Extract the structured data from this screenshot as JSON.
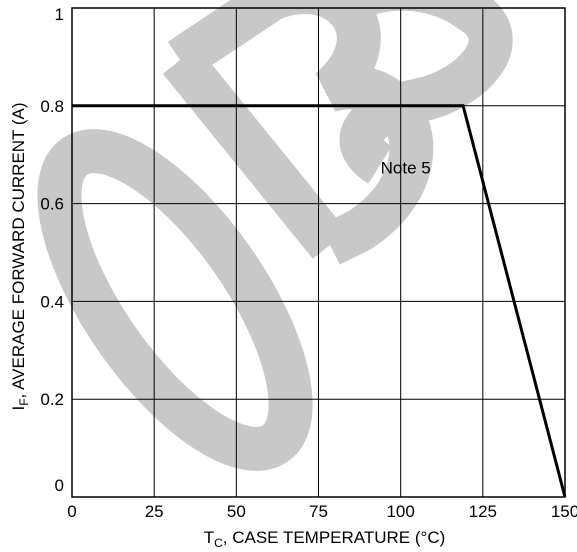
{
  "chart_data": {
    "type": "line",
    "title": "",
    "x": [
      0,
      119,
      150
    ],
    "series": [
      {
        "values": [
          0.8,
          0.8,
          0
        ]
      }
    ],
    "xlim": [
      0,
      150
    ],
    "ylim": [
      0,
      1
    ],
    "xticks": [
      "0",
      "25",
      "50",
      "75",
      "100",
      "125",
      "150"
    ],
    "yticks": [
      "0",
      "0.2",
      "0.4",
      "0.6",
      "0.8",
      "1"
    ],
    "xlabel": {
      "main": "T",
      "sub": "C",
      "rest": ", CASE TEMPERATURE (°C)"
    },
    "ylabel": {
      "main": "I",
      "sub": "F",
      "rest": ", AVERAGE FORWARD CURRENT (A)"
    },
    "annotation": {
      "text": "Note 5",
      "x": 100,
      "y": 0.67
    },
    "watermark": "OBS",
    "grid": true,
    "colors": {
      "line": "#000000",
      "grid": "#000000",
      "watermark": "#c8c8c8"
    }
  }
}
